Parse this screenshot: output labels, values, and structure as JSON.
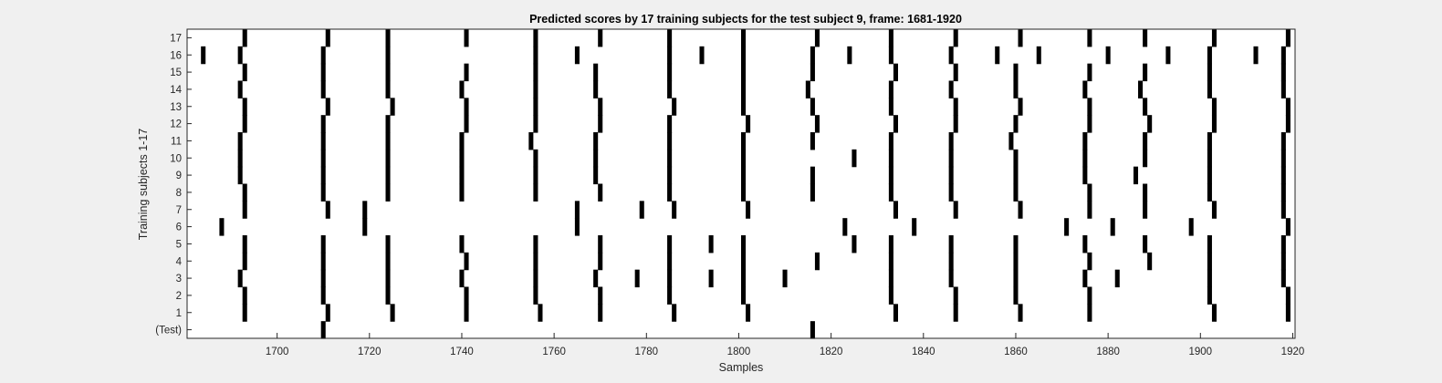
{
  "chart_data": {
    "type": "raster",
    "title": "Predicted scores by 17 training subjects for the test subject 9, frame: 1681-1920",
    "xlabel": "Samples",
    "ylabel": "Training subjects 1-17",
    "xlim": [
      1681,
      1920
    ],
    "x_ticks": [
      1700,
      1720,
      1740,
      1760,
      1780,
      1800,
      1820,
      1840,
      1860,
      1880,
      1900,
      1920
    ],
    "rows": [
      "(Test)",
      "1",
      "2",
      "3",
      "4",
      "5",
      "6",
      "7",
      "8",
      "9",
      "10",
      "11",
      "12",
      "13",
      "14",
      "15",
      "16",
      "17"
    ],
    "mark_color": "#000000",
    "background_color": "#ffffff",
    "grid": false,
    "series": [
      {
        "label": "(Test)",
        "x": [
          1710,
          1816
        ]
      },
      {
        "label": "1",
        "x": [
          1693,
          1711,
          1725,
          1741,
          1757,
          1770,
          1786,
          1802,
          1834,
          1847,
          1861,
          1876,
          1903,
          1919
        ]
      },
      {
        "label": "2",
        "x": [
          1693,
          1710,
          1724,
          1741,
          1756,
          1770,
          1785,
          1801,
          1833,
          1847,
          1860,
          1876,
          1902,
          1919
        ]
      },
      {
        "label": "3",
        "x": [
          1692,
          1710,
          1724,
          1740,
          1756,
          1769,
          1778,
          1785,
          1794,
          1801,
          1810,
          1833,
          1846,
          1860,
          1875,
          1882,
          1902,
          1918
        ]
      },
      {
        "label": "4",
        "x": [
          1693,
          1710,
          1724,
          1741,
          1756,
          1770,
          1785,
          1801,
          1817,
          1833,
          1846,
          1860,
          1876,
          1889,
          1902,
          1918
        ]
      },
      {
        "label": "5",
        "x": [
          1693,
          1710,
          1724,
          1740,
          1756,
          1770,
          1785,
          1794,
          1801,
          1825,
          1833,
          1846,
          1860,
          1875,
          1888,
          1902,
          1918
        ]
      },
      {
        "label": "6",
        "x": [
          1688,
          1719,
          1765,
          1823,
          1838,
          1871,
          1881,
          1898,
          1919
        ]
      },
      {
        "label": "7",
        "x": [
          1693,
          1711,
          1719,
          1765,
          1779,
          1786,
          1802,
          1834,
          1847,
          1861,
          1876,
          1888,
          1903,
          1918
        ]
      },
      {
        "label": "8",
        "x": [
          1693,
          1710,
          1724,
          1740,
          1756,
          1770,
          1785,
          1801,
          1816,
          1833,
          1846,
          1860,
          1876,
          1888,
          1902,
          1918
        ]
      },
      {
        "label": "9",
        "x": [
          1692,
          1710,
          1724,
          1740,
          1756,
          1769,
          1785,
          1801,
          1816,
          1833,
          1846,
          1860,
          1875,
          1886,
          1902,
          1918
        ]
      },
      {
        "label": "10",
        "x": [
          1692,
          1710,
          1724,
          1740,
          1756,
          1769,
          1785,
          1801,
          1825,
          1833,
          1846,
          1860,
          1875,
          1888,
          1902,
          1918
        ]
      },
      {
        "label": "11",
        "x": [
          1692,
          1710,
          1724,
          1740,
          1755,
          1769,
          1785,
          1801,
          1816,
          1833,
          1846,
          1859,
          1875,
          1888,
          1902,
          1918
        ]
      },
      {
        "label": "12",
        "x": [
          1693,
          1710,
          1724,
          1741,
          1756,
          1770,
          1785,
          1802,
          1817,
          1834,
          1847,
          1860,
          1876,
          1889,
          1903,
          1919
        ]
      },
      {
        "label": "13",
        "x": [
          1693,
          1711,
          1725,
          1741,
          1756,
          1770,
          1786,
          1801,
          1816,
          1833,
          1847,
          1861,
          1876,
          1888,
          1903,
          1919
        ]
      },
      {
        "label": "14",
        "x": [
          1692,
          1710,
          1724,
          1740,
          1756,
          1769,
          1785,
          1801,
          1815,
          1833,
          1846,
          1860,
          1875,
          1887,
          1902,
          1918
        ]
      },
      {
        "label": "15",
        "x": [
          1693,
          1710,
          1724,
          1741,
          1756,
          1769,
          1785,
          1801,
          1816,
          1834,
          1847,
          1860,
          1876,
          1888,
          1902,
          1918
        ]
      },
      {
        "label": "16",
        "x": [
          1684,
          1692,
          1710,
          1724,
          1756,
          1765,
          1785,
          1792,
          1801,
          1816,
          1824,
          1833,
          1846,
          1856,
          1865,
          1880,
          1893,
          1902,
          1912,
          1918
        ]
      },
      {
        "label": "17",
        "x": [
          1693,
          1711,
          1724,
          1741,
          1756,
          1770,
          1785,
          1801,
          1817,
          1833,
          1847,
          1861,
          1876,
          1888,
          1903,
          1919
        ]
      }
    ]
  }
}
